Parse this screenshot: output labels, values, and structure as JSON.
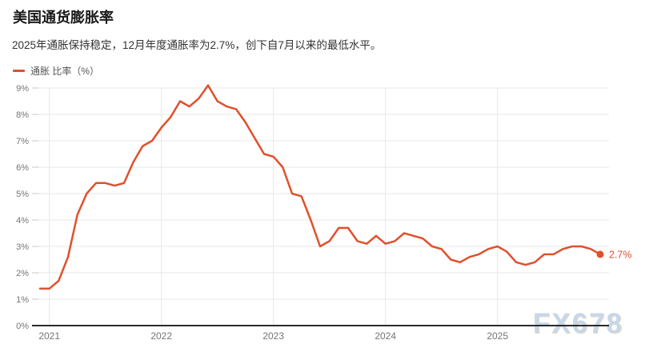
{
  "header": {
    "title": "美国通货膨胀率",
    "subtitle": "2025年通胀保持稳定，12月年度通胀率为2.7%，创下自7月以来的最低水平。"
  },
  "legend": {
    "label": "通胀 比率（%）"
  },
  "watermark": {
    "text": "FX678"
  },
  "colors": {
    "line": "#e0502c",
    "grid": "#e7e7e7",
    "tick": "#c9c9c9",
    "axis": "#2b2b2b",
    "tick_label": "#757575",
    "end_label": "#e0502c",
    "watermark": "#c7d7e9"
  },
  "chart_data": {
    "type": "line",
    "title": "美国通货膨胀率",
    "series_name": "通胀 比率（%）",
    "x_unit": "month",
    "start_month": "2020-12",
    "end_month": "2025-12",
    "x_tick_labels": [
      "2021",
      "2022",
      "2023",
      "2024",
      "2025"
    ],
    "y_tick_labels": [
      "0%",
      "1%",
      "2%",
      "3%",
      "4%",
      "5%",
      "6%",
      "7%",
      "8%",
      "9%"
    ],
    "ylim": [
      0,
      9
    ],
    "grid": true,
    "legend_position": "top-left",
    "values": [
      1.4,
      1.4,
      1.7,
      2.6,
      4.2,
      5.0,
      5.4,
      5.4,
      5.3,
      5.4,
      6.2,
      6.8,
      7.0,
      7.5,
      7.9,
      8.5,
      8.3,
      8.6,
      9.1,
      8.5,
      8.3,
      8.2,
      7.7,
      7.1,
      6.5,
      6.4,
      6.0,
      5.0,
      4.9,
      4.0,
      3.0,
      3.2,
      3.7,
      3.7,
      3.2,
      3.1,
      3.4,
      3.1,
      3.2,
      3.5,
      3.4,
      3.3,
      3.0,
      2.9,
      2.5,
      2.4,
      2.6,
      2.7,
      2.9,
      3.0,
      2.8,
      2.4,
      2.3,
      2.4,
      2.7,
      2.7,
      2.9,
      3.0,
      3.0,
      2.9,
      2.7
    ],
    "end_label": "2.7%"
  }
}
